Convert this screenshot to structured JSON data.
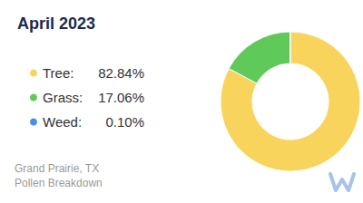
{
  "chart_data": {
    "type": "pie",
    "title": "April 2023",
    "categories": [
      "Tree:",
      "Grass:",
      "Weed:"
    ],
    "values": [
      82.84,
      17.06,
      0.1
    ],
    "value_labels": [
      "82.84%",
      "17.06%",
      "0.10%"
    ],
    "colors": [
      "#f8d45c",
      "#5fca5a",
      "#4a8fe7"
    ],
    "annotations": [
      "Grand Prairie, TX",
      "Pollen Breakdown"
    ],
    "legend": "left"
  }
}
